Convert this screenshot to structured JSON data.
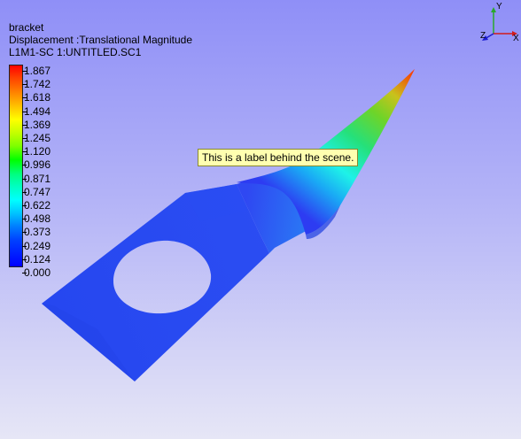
{
  "model": {
    "name": "bracket",
    "result": "Displacement :Translational Magnitude",
    "case": "L1M1-SC 1:UNTITLED.SC1"
  },
  "legend": {
    "labels": [
      "1.867",
      "1.742",
      "1.618",
      "1.494",
      "1.369",
      "1.245",
      "1.120",
      "0.996",
      "0.871",
      "0.747",
      "0.622",
      "0.498",
      "0.373",
      "0.249",
      "0.124",
      "0.000"
    ]
  },
  "annotation": {
    "text": "This is  a label behind the scene."
  },
  "axes": {
    "x": "X",
    "y": "Y",
    "z": "Z"
  },
  "colors": {
    "mesh_base": "#2445f0",
    "mesh_peak": "#ff2b00",
    "background_top": "#8f8ff7",
    "background_bottom": "#e6e6f6"
  }
}
